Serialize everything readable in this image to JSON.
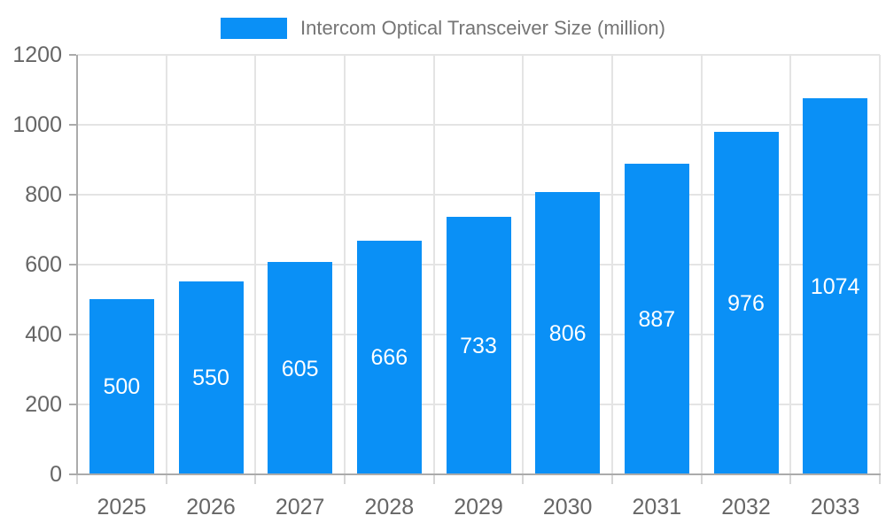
{
  "legend": {
    "label": "Intercom Optical Transceiver Size (million)"
  },
  "chart_data": {
    "type": "bar",
    "title": "Intercom Optical Transceiver Size (million)",
    "categories": [
      "2025",
      "2026",
      "2027",
      "2028",
      "2029",
      "2030",
      "2031",
      "2032",
      "2033"
    ],
    "values": [
      500,
      550,
      605,
      666,
      733,
      806,
      887,
      976,
      1074
    ],
    "series": [
      {
        "name": "Intercom Optical Transceiver Size (million)",
        "values": [
          500,
          550,
          605,
          666,
          733,
          806,
          887,
          976,
          1074
        ]
      }
    ],
    "xlabel": "",
    "ylabel": "",
    "ylim": [
      0,
      1200
    ],
    "yticks": [
      0,
      200,
      400,
      600,
      800,
      1000,
      1200
    ],
    "grid": true,
    "legend_position": "top",
    "value_labels": "inside-center",
    "colors": {
      "bar": "#0A90F6",
      "bar_value_text": "#FFFFFF",
      "grid_line": "#E4E4E4",
      "axis_line": "#ABABAB",
      "tick_y": "#ABABAB",
      "tick_x": "#D6D6D6",
      "axis_text": "#666666",
      "legend_text": "#757575",
      "background": "#FFFFFF"
    }
  }
}
